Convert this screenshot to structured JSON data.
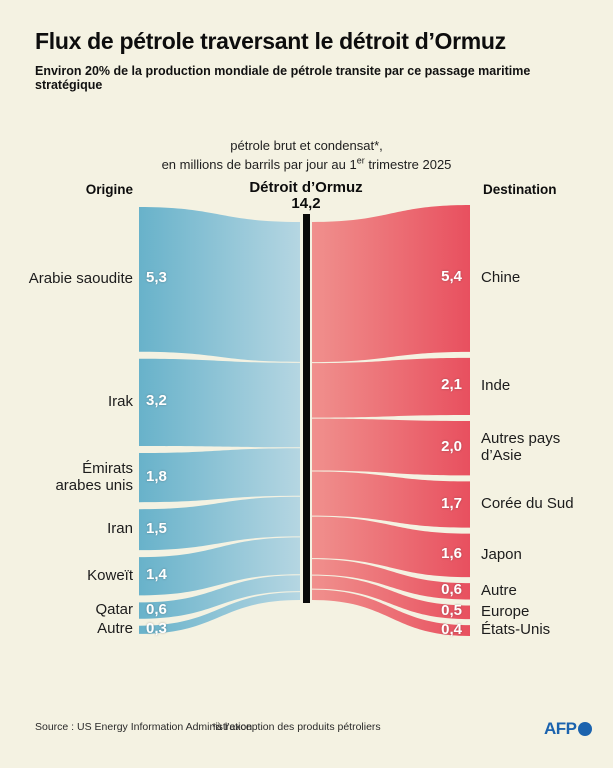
{
  "header": {
    "title": "Flux de pétrole traversant le détroit d’Ormuz",
    "subtitle": "Environ 20% de la production mondiale de pétrole transite par ce passage maritime stratégique"
  },
  "chart_data": {
    "type": "sankey",
    "unit_note_line1": "pétrole brut et condensat*,",
    "unit_note_line2_prefix": "en millions de barrils par jour au 1",
    "unit_note_line2_sup": "er",
    "unit_note_line2_suffix": " trimestre 2025",
    "left_header": "Origine",
    "center_header": "Détroit d’Ormuz",
    "center_total_display": "14,2",
    "center_total": 14.2,
    "right_header": "Destination",
    "origins": [
      {
        "label": "Arabie saoudite",
        "lines": [
          "Arabie saoudite"
        ],
        "value": 5.3,
        "display": "5,3"
      },
      {
        "label": "Irak",
        "lines": [
          "Irak"
        ],
        "value": 3.2,
        "display": "3,2"
      },
      {
        "label": "Émirats arabes unis",
        "lines": [
          "Émirats",
          "arabes unis"
        ],
        "value": 1.8,
        "display": "1,8"
      },
      {
        "label": "Iran",
        "lines": [
          "Iran"
        ],
        "value": 1.5,
        "display": "1,5"
      },
      {
        "label": "Koweït",
        "lines": [
          "Koweït"
        ],
        "value": 1.4,
        "display": "1,4"
      },
      {
        "label": "Qatar",
        "lines": [
          "Qatar"
        ],
        "value": 0.6,
        "display": "0,6"
      },
      {
        "label": "Autre",
        "lines": [
          "Autre"
        ],
        "value": 0.3,
        "display": "0,3"
      }
    ],
    "destinations": [
      {
        "label": "Chine",
        "lines": [
          "Chine"
        ],
        "value": 5.4,
        "display": "5,4"
      },
      {
        "label": "Inde",
        "lines": [
          "Inde"
        ],
        "value": 2.1,
        "display": "2,1"
      },
      {
        "label": "Autres pays d’Asie",
        "lines": [
          "Autres pays",
          "d’Asie"
        ],
        "value": 2.0,
        "display": "2,0"
      },
      {
        "label": "Corée du Sud",
        "lines": [
          "Corée du Sud"
        ],
        "value": 1.7,
        "display": "1,7"
      },
      {
        "label": "Japon",
        "lines": [
          "Japon"
        ],
        "value": 1.6,
        "display": "1,6"
      },
      {
        "label": "Autre",
        "lines": [
          "Autre"
        ],
        "value": 0.6,
        "display": "0,6"
      },
      {
        "label": "Europe",
        "lines": [
          "Europe"
        ],
        "value": 0.5,
        "display": "0,5"
      },
      {
        "label": "États-Unis",
        "lines": [
          "États-Unis"
        ],
        "value": 0.4,
        "display": "0,4"
      }
    ],
    "colors": {
      "origin_outer": "#68b2ca",
      "origin_inner": "#b5d6e2",
      "dest_inner": "#f0908d",
      "dest_outer": "#e8505f",
      "strait_bar": "#0a0a0a"
    }
  },
  "footer": {
    "source": "Source : US Energy Information Administration",
    "footnote": "*à l’exception des produits pétroliers",
    "afp_label": "AFP",
    "afp_color": "#1b63ae"
  }
}
